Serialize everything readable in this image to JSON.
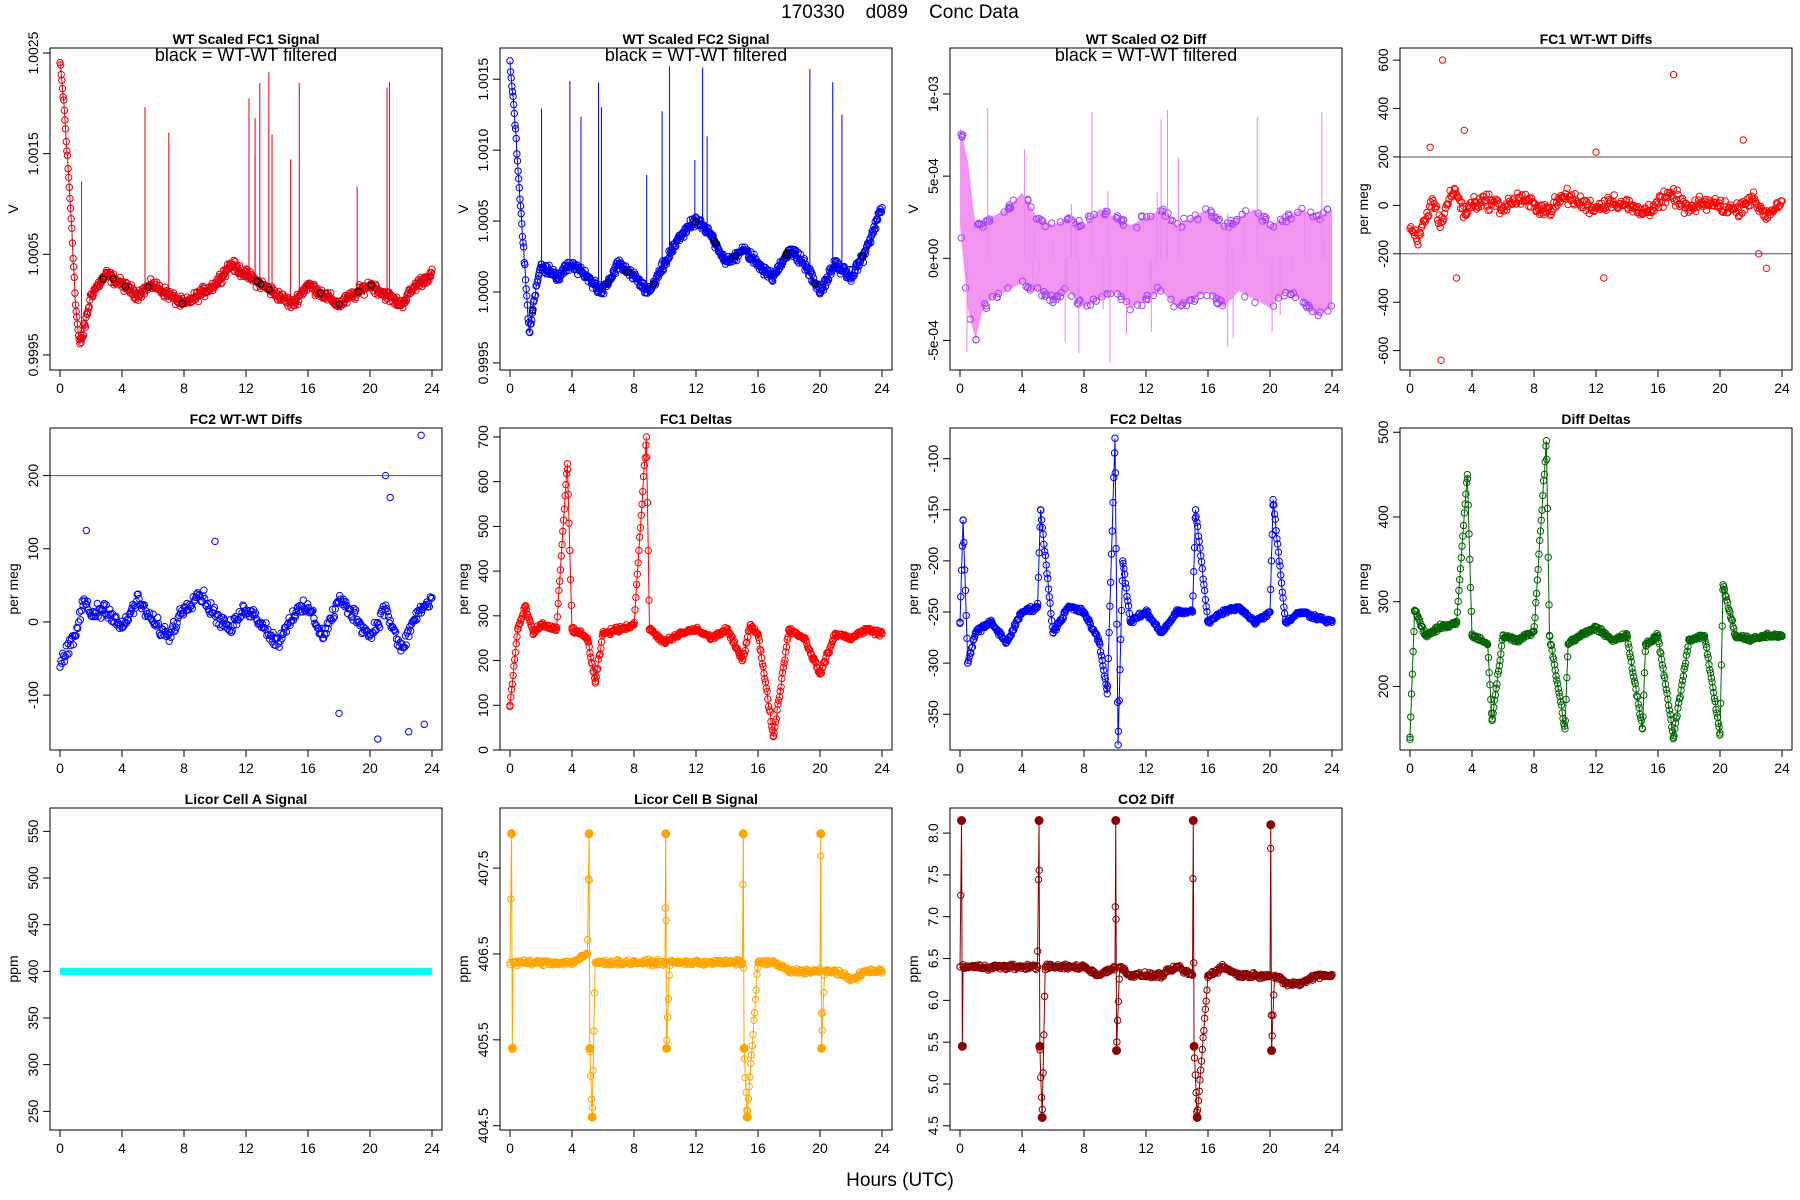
{
  "figure": {
    "title": "170330    d089    Conc Data",
    "xlabel": "Hours (UTC)"
  },
  "chart_data": [
    {
      "id": "wt-fc1-signal",
      "type": "scatter",
      "title": "WT Scaled FC1 Signal",
      "ylabel": "V",
      "annotation": "black = WT-WT filtered",
      "color": "#e00010",
      "xlim": [
        0,
        24
      ],
      "ylim": [
        0.99935,
        1.00255
      ],
      "xticks": [
        0,
        4,
        8,
        12,
        16,
        20,
        24
      ],
      "xtick_labels": [
        "0",
        "4",
        "8",
        "12",
        "16",
        "20",
        "24"
      ],
      "yticks": [
        0.9995,
        1.0005,
        1.0015,
        1.0025
      ],
      "ytick_labels": [
        "0.9995",
        "1.0005",
        "1.0015",
        "1.0025"
      ],
      "x": [
        0,
        0.25,
        0.5,
        0.75,
        1,
        1.25,
        1.5,
        2,
        3,
        4,
        5,
        6,
        7,
        8,
        9,
        10,
        11,
        12,
        13,
        14,
        15,
        16,
        17,
        18,
        19,
        20,
        21,
        22,
        23,
        24
      ],
      "y": [
        1.0024,
        1.002,
        1.0014,
        1.0008,
        1.0,
        0.9996,
        0.9997,
        1.0001,
        1.0003,
        1.0002,
        1.0001,
        1.0002,
        1.0001,
        1.0,
        1.0001,
        1.0002,
        1.0004,
        1.0003,
        1.0002,
        1.0001,
        1.0,
        1.0002,
        1.0001,
        1.0,
        1.0001,
        1.0002,
        1.0001,
        1.0,
        1.0002,
        1.0003
      ]
    },
    {
      "id": "wt-fc2-signal",
      "type": "scatter",
      "title": "WT Scaled FC2 Signal",
      "ylabel": "V",
      "annotation": "black = WT-WT filtered",
      "color": "#0000ee",
      "xlim": [
        0,
        24
      ],
      "ylim": [
        0.99945,
        1.00172
      ],
      "xticks": [
        0,
        4,
        8,
        12,
        16,
        20,
        24
      ],
      "xtick_labels": [
        "0",
        "4",
        "8",
        "12",
        "16",
        "20",
        "24"
      ],
      "yticks": [
        0.9995,
        1.0,
        1.0005,
        1.001,
        1.0015
      ],
      "ytick_labels": [
        "0.9995",
        "1.0000",
        "1.0005",
        "1.0010",
        "1.0015"
      ],
      "x": [
        0,
        0.25,
        0.5,
        0.75,
        1,
        1.25,
        1.5,
        2,
        3,
        4,
        5,
        6,
        7,
        8,
        9,
        10,
        11,
        12,
        13,
        14,
        15,
        16,
        17,
        18,
        19,
        20,
        21,
        22,
        23,
        24
      ],
      "y": [
        1.0016,
        1.0013,
        1.0009,
        1.0005,
        1.0001,
        0.9997,
        0.9999,
        1.0002,
        1.0001,
        1.0002,
        1.0001,
        1.0,
        1.0002,
        1.0001,
        1.0,
        1.0002,
        1.0004,
        1.0005,
        1.0004,
        1.0002,
        1.0003,
        1.0002,
        1.0001,
        1.0003,
        1.0002,
        1.0,
        1.0002,
        1.0001,
        1.0003,
        1.0006
      ]
    },
    {
      "id": "wt-o2-diff",
      "type": "scatter",
      "title": "WT Scaled O2 Diff",
      "ylabel": "V",
      "annotation": "black = WT-WT filtered",
      "color": "#a040ff",
      "fill_color": "#ee82ee",
      "xlim": [
        0,
        24
      ],
      "ylim": [
        -0.00068,
        0.00128
      ],
      "xticks": [
        0,
        4,
        8,
        12,
        16,
        20,
        24
      ],
      "xtick_labels": [
        "0",
        "4",
        "8",
        "12",
        "16",
        "20",
        "24"
      ],
      "yticks": [
        -0.0005,
        0,
        0.0005,
        0.001
      ],
      "ytick_labels": [
        "-5e-04",
        "0e+00",
        "5e-04",
        "1e-03"
      ],
      "x": [
        0,
        0.5,
        1,
        1.5,
        2,
        3,
        4,
        5,
        6,
        7,
        8,
        9,
        10,
        11,
        12,
        13,
        14,
        15,
        16,
        17,
        18,
        19,
        20,
        21,
        22,
        23,
        24
      ],
      "y_upper": [
        0.0008,
        0.0006,
        0.0002,
        0.0002,
        0.00025,
        0.0003,
        0.0004,
        0.00025,
        0.0002,
        0.00025,
        0.0002,
        0.0003,
        0.00025,
        0.0002,
        0.00025,
        0.0003,
        0.0002,
        0.00025,
        0.0003,
        0.0002,
        0.00025,
        0.0003,
        0.0002,
        0.00025,
        0.0003,
        0.00025,
        0.0003
      ],
      "y_lower": [
        0.0002,
        -0.0003,
        -0.0005,
        -0.0003,
        -0.00025,
        -0.0002,
        -0.00015,
        -0.0002,
        -0.00025,
        -0.0002,
        -0.0003,
        -0.00025,
        -0.0002,
        -0.0003,
        -0.00025,
        -0.0002,
        -0.0003,
        -0.00025,
        -0.0002,
        -0.0003,
        -0.0002,
        -0.00025,
        -0.0003,
        -0.0002,
        -0.00025,
        -0.00035,
        -0.0003
      ]
    },
    {
      "id": "fc1-wtwt-diffs",
      "type": "scatter",
      "title": "FC1 WT-WT Diffs",
      "ylabel": "per meg",
      "color": "#ff0000",
      "hlines": [
        200,
        -200
      ],
      "xlim": [
        0,
        24
      ],
      "ylim": [
        -680,
        650
      ],
      "xticks": [
        0,
        4,
        8,
        12,
        16,
        20,
        24
      ],
      "xtick_labels": [
        "0",
        "4",
        "8",
        "12",
        "16",
        "20",
        "24"
      ],
      "yticks": [
        -600,
        -400,
        -200,
        0,
        200,
        400,
        600
      ],
      "ytick_labels": [
        "-600",
        "-400",
        "-200",
        "0",
        "200",
        "400",
        "600"
      ],
      "x": [
        0,
        0.5,
        1,
        1.5,
        2,
        2.5,
        3,
        3.5,
        4,
        5,
        6,
        7,
        8,
        9,
        10,
        11,
        12,
        13,
        14,
        15,
        16,
        17,
        18,
        19,
        20,
        21,
        22,
        23,
        24
      ],
      "y": [
        -100,
        -150,
        -50,
        20,
        -80,
        30,
        60,
        -40,
        10,
        20,
        -10,
        30,
        0,
        -20,
        40,
        10,
        -10,
        20,
        0,
        -30,
        10,
        40,
        -20,
        10,
        0,
        -20,
        30,
        -40,
        20
      ],
      "outliers_x": [
        1.3,
        2.1,
        2.0,
        3.5,
        3.0,
        12.0,
        12.5,
        17.0,
        21.5,
        22.5,
        23.0
      ],
      "outliers_y": [
        240,
        600,
        -640,
        310,
        -300,
        220,
        -300,
        540,
        270,
        -200,
        -260
      ]
    },
    {
      "id": "fc2-wtwt-diffs",
      "type": "scatter",
      "title": "FC2 WT-WT Diffs",
      "ylabel": "per meg",
      "color": "#0000ff",
      "hlines": [
        200
      ],
      "xlim": [
        0,
        24
      ],
      "ylim": [
        -175,
        265
      ],
      "xticks": [
        0,
        4,
        8,
        12,
        16,
        20,
        24
      ],
      "xtick_labels": [
        "0",
        "4",
        "8",
        "12",
        "16",
        "20",
        "24"
      ],
      "yticks": [
        -100,
        0,
        100,
        200
      ],
      "ytick_labels": [
        "-100",
        "0",
        "100",
        "200"
      ],
      "x": [
        0,
        0.5,
        1,
        1.5,
        2,
        3,
        4,
        5,
        6,
        7,
        8,
        9,
        10,
        11,
        12,
        13,
        14,
        15,
        16,
        17,
        18,
        19,
        20,
        21,
        22,
        23,
        24
      ],
      "y": [
        -60,
        -40,
        -20,
        30,
        10,
        20,
        -10,
        30,
        0,
        -20,
        20,
        40,
        10,
        -10,
        20,
        0,
        -30,
        10,
        20,
        -20,
        30,
        10,
        -20,
        20,
        -40,
        10,
        30
      ],
      "outliers_x": [
        1.7,
        10.0,
        18.0,
        20.5,
        21.0,
        21.3,
        22.5,
        23.5,
        23.3
      ],
      "outliers_y": [
        125,
        110,
        -125,
        -160,
        200,
        170,
        -150,
        -140,
        255
      ]
    },
    {
      "id": "fc1-deltas",
      "type": "line",
      "title": "FC1 Deltas",
      "ylabel": "per meg",
      "color": "#ff0000",
      "xlim": [
        0,
        24
      ],
      "ylim": [
        0,
        720
      ],
      "xticks": [
        0,
        4,
        8,
        12,
        16,
        20,
        24
      ],
      "xtick_labels": [
        "0",
        "4",
        "8",
        "12",
        "16",
        "20",
        "24"
      ],
      "yticks": [
        0,
        100,
        200,
        300,
        400,
        500,
        600,
        700
      ],
      "ytick_labels": [
        "0",
        "100",
        "200",
        "300",
        "400",
        "500",
        "600",
        "700"
      ],
      "x": [
        0,
        0.5,
        1,
        1.5,
        2,
        3,
        3.7,
        4,
        5,
        5.5,
        6,
        7,
        8,
        8.8,
        9,
        10,
        11,
        12,
        13,
        14,
        15,
        15.5,
        16,
        17,
        18,
        19,
        20,
        21,
        22,
        23,
        24
      ],
      "y": [
        100,
        270,
        320,
        260,
        280,
        270,
        640,
        270,
        250,
        150,
        260,
        270,
        280,
        700,
        270,
        240,
        260,
        270,
        250,
        270,
        200,
        280,
        260,
        30,
        270,
        250,
        170,
        260,
        250,
        270,
        260
      ]
    },
    {
      "id": "fc2-deltas",
      "type": "line",
      "title": "FC2 Deltas",
      "ylabel": "per meg",
      "color": "#0000ff",
      "xlim": [
        0,
        24
      ],
      "ylim": [
        -385,
        -70
      ],
      "xticks": [
        0,
        4,
        8,
        12,
        16,
        20,
        24
      ],
      "xtick_labels": [
        "0",
        "4",
        "8",
        "12",
        "16",
        "20",
        "24"
      ],
      "yticks": [
        -350,
        -300,
        -250,
        -200,
        -150,
        -100
      ],
      "ytick_labels": [
        "-350",
        "-300",
        "-250",
        "-200",
        "-150",
        "-100"
      ],
      "x": [
        0,
        0.2,
        0.5,
        1,
        2,
        3,
        4,
        5,
        5.2,
        6,
        7,
        8,
        9,
        9.5,
        10,
        10.2,
        10.5,
        11,
        12,
        13,
        14,
        15,
        15.2,
        16,
        17,
        18,
        19,
        20,
        20.2,
        21,
        22,
        23,
        24
      ],
      "y": [
        -260,
        -160,
        -300,
        -270,
        -260,
        -280,
        -250,
        -245,
        -150,
        -270,
        -245,
        -250,
        -280,
        -330,
        -80,
        -380,
        -200,
        -260,
        -250,
        -270,
        -250,
        -250,
        -150,
        -260,
        -250,
        -245,
        -260,
        -250,
        -140,
        -260,
        -250,
        -255,
        -260
      ]
    },
    {
      "id": "diff-deltas",
      "type": "line",
      "title": "Diff Deltas",
      "ylabel": "per meg",
      "color": "#006400",
      "xlim": [
        0,
        24
      ],
      "ylim": [
        125,
        505
      ],
      "xticks": [
        0,
        4,
        8,
        12,
        16,
        20,
        24
      ],
      "xtick_labels": [
        "0",
        "4",
        "8",
        "12",
        "16",
        "20",
        "24"
      ],
      "yticks": [
        200,
        300,
        400,
        500
      ],
      "ytick_labels": [
        "200",
        "300",
        "400",
        "500"
      ],
      "x": [
        0,
        0.3,
        1,
        2,
        3,
        3.7,
        4,
        5,
        5.3,
        6,
        7,
        8,
        8.8,
        9,
        10,
        10.2,
        11,
        12,
        13,
        14,
        15,
        15.2,
        16,
        17,
        18,
        19,
        20,
        20.2,
        21,
        22,
        23,
        24
      ],
      "y": [
        140,
        290,
        260,
        270,
        275,
        450,
        260,
        250,
        160,
        260,
        255,
        265,
        490,
        260,
        150,
        250,
        260,
        270,
        255,
        260,
        150,
        250,
        260,
        140,
        255,
        260,
        145,
        320,
        260,
        255,
        260,
        260
      ]
    },
    {
      "id": "licor-cell-a",
      "type": "line",
      "title": "Licor Cell A Signal",
      "ylabel": "ppm",
      "color": "#00ffff",
      "xlim": [
        0,
        24
      ],
      "ylim": [
        230,
        575
      ],
      "xticks": [
        0,
        4,
        8,
        12,
        16,
        20,
        24
      ],
      "xtick_labels": [
        "0",
        "4",
        "8",
        "12",
        "16",
        "20",
        "24"
      ],
      "yticks": [
        250,
        300,
        350,
        400,
        450,
        500,
        550
      ],
      "ytick_labels": [
        "250",
        "300",
        "350",
        "400",
        "450",
        "500",
        "550"
      ],
      "x": [
        0,
        24
      ],
      "y": [
        400,
        400
      ]
    },
    {
      "id": "licor-cell-b",
      "type": "line",
      "title": "Licor Cell B Signal",
      "ylabel": "ppm",
      "color": "#ffa500",
      "xlim": [
        0,
        24
      ],
      "ylim": [
        404.45,
        408.2
      ],
      "xticks": [
        0,
        4,
        8,
        12,
        16,
        20,
        24
      ],
      "xtick_labels": [
        "0",
        "4",
        "8",
        "12",
        "16",
        "20",
        "24"
      ],
      "yticks": [
        404.5,
        405.5,
        406.5,
        407.5
      ],
      "ytick_labels": [
        "404.5",
        "405.5",
        "406.5",
        "407.5"
      ],
      "x": [
        0,
        0.1,
        0.15,
        0.2,
        1,
        2,
        3,
        4,
        5,
        5.1,
        5.15,
        5.3,
        5.5,
        6,
        7,
        8,
        9,
        10,
        10.05,
        10.1,
        10.3,
        11,
        12,
        13,
        14,
        15,
        15.05,
        15.1,
        15.3,
        16,
        17,
        18,
        19,
        20,
        20.05,
        20.1,
        20.3,
        21,
        22,
        23,
        24
      ],
      "y": [
        406.4,
        407.9,
        405.4,
        406.4,
        406.4,
        406.4,
        406.4,
        406.4,
        406.5,
        407.9,
        405.4,
        404.6,
        406.4,
        406.4,
        406.4,
        406.4,
        406.4,
        406.4,
        407.9,
        405.4,
        406.4,
        406.4,
        406.4,
        406.4,
        406.4,
        406.4,
        407.9,
        405.4,
        404.6,
        406.4,
        406.4,
        406.3,
        406.3,
        406.3,
        407.9,
        405.4,
        406.3,
        406.3,
        406.2,
        406.3,
        406.3
      ]
    },
    {
      "id": "co2-diff",
      "type": "line",
      "title": "CO2 Diff",
      "ylabel": "ppm",
      "color": "#8b0000",
      "xlim": [
        0,
        24
      ],
      "ylim": [
        4.45,
        8.3
      ],
      "xticks": [
        0,
        4,
        8,
        12,
        16,
        20,
        24
      ],
      "xtick_labels": [
        "0",
        "4",
        "8",
        "12",
        "16",
        "20",
        "24"
      ],
      "yticks": [
        4.5,
        5.0,
        5.5,
        6.0,
        6.5,
        7.0,
        7.5,
        8.0
      ],
      "ytick_labels": [
        "4.5",
        "5.0",
        "5.5",
        "6.0",
        "6.5",
        "7.0",
        "7.5",
        "8.0"
      ],
      "x": [
        0,
        0.1,
        0.15,
        0.2,
        1,
        2,
        3,
        4,
        5,
        5.1,
        5.15,
        5.3,
        5.5,
        6,
        7,
        8,
        9,
        10,
        10.05,
        10.1,
        10.3,
        11,
        12,
        13,
        14,
        15,
        15.05,
        15.1,
        15.3,
        16,
        17,
        18,
        19,
        20,
        20.05,
        20.1,
        20.3,
        21,
        22,
        23,
        24
      ],
      "y": [
        6.4,
        8.15,
        5.45,
        6.4,
        6.4,
        6.4,
        6.4,
        6.4,
        6.4,
        8.15,
        5.45,
        4.6,
        6.4,
        6.4,
        6.4,
        6.4,
        6.3,
        6.4,
        8.15,
        5.4,
        6.4,
        6.3,
        6.3,
        6.3,
        6.4,
        6.3,
        8.15,
        5.45,
        4.6,
        6.3,
        6.4,
        6.3,
        6.3,
        6.3,
        8.1,
        5.4,
        6.3,
        6.2,
        6.2,
        6.3,
        6.3
      ]
    }
  ]
}
